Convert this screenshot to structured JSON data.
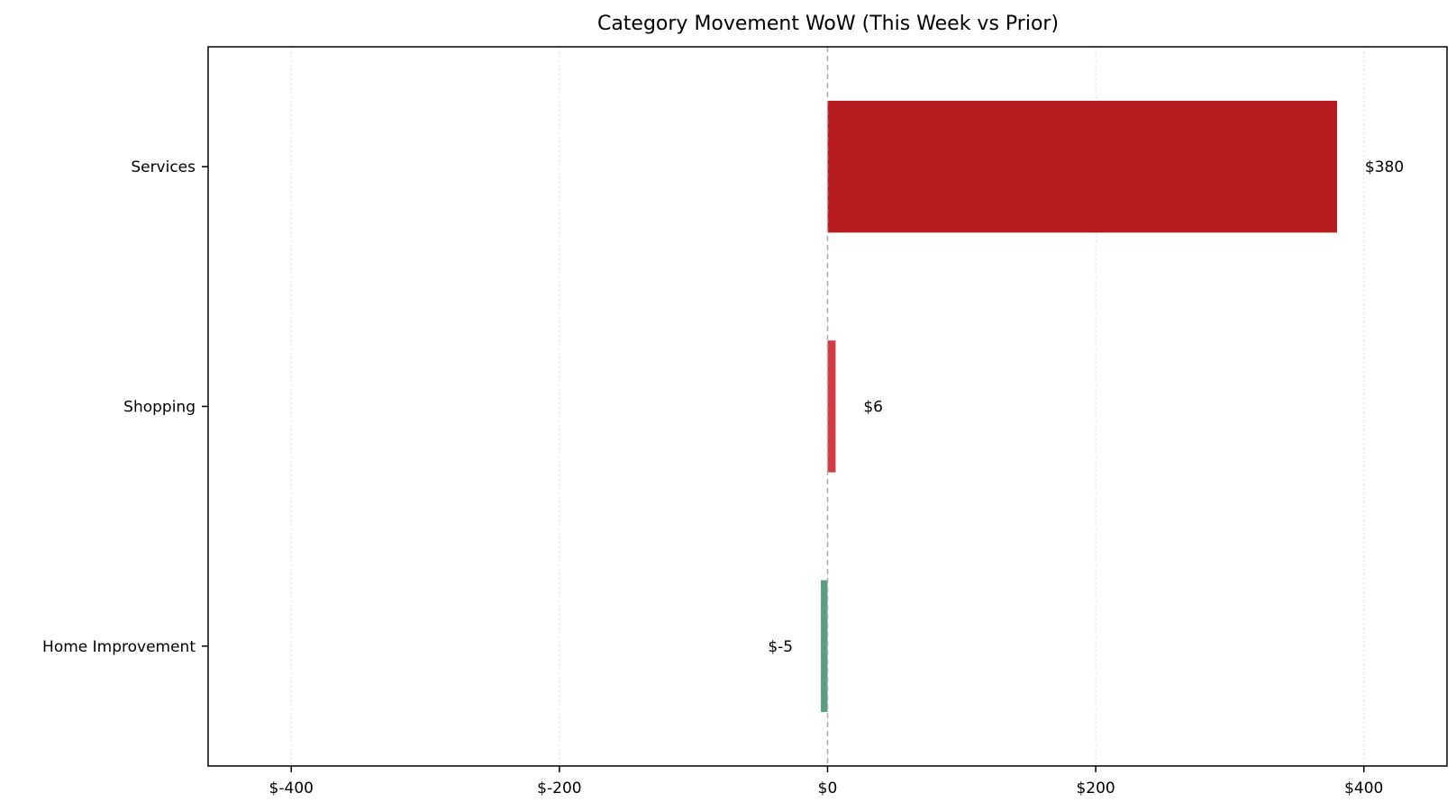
{
  "chart_data": {
    "type": "bar",
    "orientation": "horizontal",
    "title": "Category Movement WoW (This Week vs Prior)",
    "xlabel": "",
    "ylabel": "",
    "categories": [
      "Services",
      "Shopping",
      "Home Improvement"
    ],
    "values": [
      380,
      6,
      -5
    ],
    "data_labels": [
      "$380",
      "$6",
      "$-5"
    ],
    "xlim": [
      -462,
      462
    ],
    "xticks": [
      -400,
      -200,
      0,
      200,
      400
    ],
    "xtick_labels": [
      "$-400",
      "$-200",
      "$0",
      "$200",
      "$400"
    ],
    "grid": "x-axis, dotted",
    "zero_line": "dashed",
    "colors": {
      "Services": "#b71c1f",
      "Shopping": "#d33b45",
      "Home Improvement": "#5a9e80",
      "grid": "#dddddd",
      "zero_line": "#aaaaaa"
    }
  }
}
